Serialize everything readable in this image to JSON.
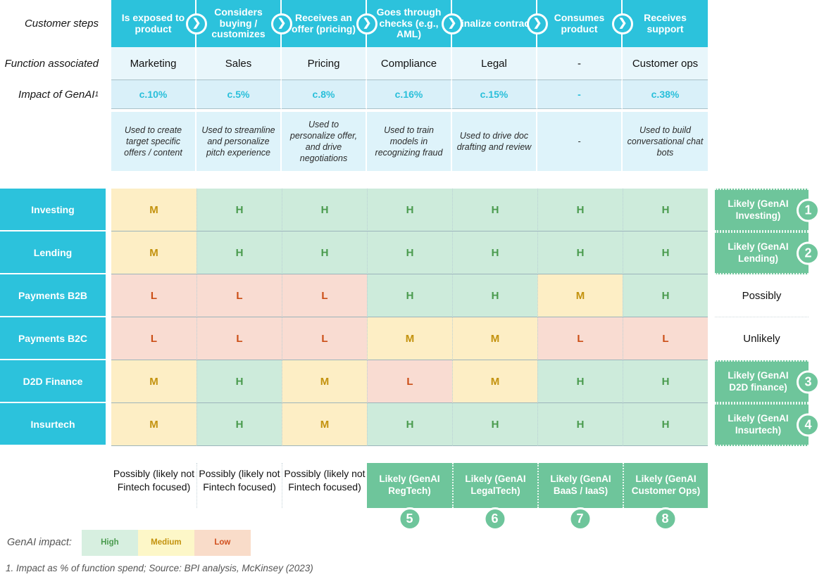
{
  "colors": {
    "accent_cyan": "#2cc2dc",
    "impact_value_cyan": "#29bfda",
    "likely_green": "#6ec59b",
    "cell_high_bg": "#cdebdb",
    "cell_medium_bg": "#fdeec5",
    "cell_low_bg": "#f9dcd2",
    "high_text": "#4a9b4e",
    "medium_text": "#c3920e",
    "low_text": "#cb4e16"
  },
  "journey": {
    "row_labels": {
      "steps": "Customer steps",
      "function": "Function associated",
      "impact": "Impact of GenAI",
      "impact_sup": "1"
    },
    "columns": [
      {
        "step": "Is exposed to  product",
        "function": "Marketing",
        "impact": "c.10%",
        "genai_use": "Used to create target specific offers / content"
      },
      {
        "step": "Considers buying / customizes",
        "function": "Sales",
        "impact": "c.5%",
        "genai_use": "Used to streamline and personalize pitch experience"
      },
      {
        "step": "Receives an offer (pricing)",
        "function": "Pricing",
        "impact": "c.8%",
        "genai_use": "Used to personalize offer, and drive negotiations"
      },
      {
        "step": "Goes through checks (e.g., AML)",
        "function": "Compliance",
        "impact": "c.16%",
        "genai_use": "Used to train models in recognizing fraud"
      },
      {
        "step": "Finalize contract",
        "function": "Legal",
        "impact": "c.15%",
        "genai_use": "Used to drive doc drafting and review"
      },
      {
        "step": "Consumes product",
        "function": "-",
        "impact": "-",
        "genai_use": "-"
      },
      {
        "step": "Receives support",
        "function": "Customer ops",
        "impact": "c.38%",
        "genai_use": "Used to build conversational chat bots"
      }
    ]
  },
  "matrix": {
    "levels": {
      "H": "High",
      "M": "Medium",
      "L": "Low"
    },
    "rows": [
      {
        "label": "Investing",
        "values": [
          "M",
          "H",
          "H",
          "H",
          "H",
          "H",
          "H"
        ],
        "outcome": {
          "type": "likely",
          "text": "Likely (GenAI Investing)",
          "number": "1"
        }
      },
      {
        "label": "Lending",
        "values": [
          "M",
          "H",
          "H",
          "H",
          "H",
          "H",
          "H"
        ],
        "outcome": {
          "type": "likely",
          "text": "Likely (GenAI Lending)",
          "number": "2"
        }
      },
      {
        "label": "Payments B2B",
        "values": [
          "L",
          "L",
          "L",
          "H",
          "H",
          "M",
          "H"
        ],
        "outcome": {
          "type": "plain",
          "text": "Possibly"
        }
      },
      {
        "label": "Payments B2C",
        "values": [
          "L",
          "L",
          "L",
          "M",
          "M",
          "L",
          "L"
        ],
        "outcome": {
          "type": "plain",
          "text": "Unlikely"
        }
      },
      {
        "label": "D2D Finance",
        "values": [
          "M",
          "H",
          "M",
          "L",
          "M",
          "H",
          "H"
        ],
        "outcome": {
          "type": "likely",
          "text": "Likely (GenAI D2D finance)",
          "number": "3"
        }
      },
      {
        "label": "Insurtech",
        "values": [
          "M",
          "H",
          "M",
          "H",
          "H",
          "H",
          "H"
        ],
        "outcome": {
          "type": "likely",
          "text": "Likely (GenAI Insurtech)",
          "number": "4"
        }
      }
    ],
    "column_outcomes": [
      {
        "type": "plain",
        "text": "Possibly (likely not Fintech focused)"
      },
      {
        "type": "plain",
        "text": "Possibly (likely not Fintech focused)"
      },
      {
        "type": "plain",
        "text": "Possibly (likely not Fintech focused)"
      },
      {
        "type": "likely",
        "text": "Likely (GenAI RegTech)",
        "number": "5"
      },
      {
        "type": "likely",
        "text": "Likely (GenAI LegalTech)",
        "number": "6"
      },
      {
        "type": "likely",
        "text": "Likely (GenAI BaaS / IaaS)",
        "number": "7"
      },
      {
        "type": "likely",
        "text": "Likely (GenAI Customer Ops)",
        "number": "8"
      }
    ]
  },
  "legend": {
    "title": "GenAI impact:",
    "items": [
      {
        "label": "High",
        "bg": "#d7efe0",
        "color": "#4a9b4e"
      },
      {
        "label": "Medium",
        "bg": "#fdf7c8",
        "color": "#c3920e"
      },
      {
        "label": "Low",
        "bg": "#f9dcc9",
        "color": "#d04f1e"
      }
    ]
  },
  "footnote": "1. Impact as % of function spend; Source: BPI analysis, McKinsey (2023)"
}
